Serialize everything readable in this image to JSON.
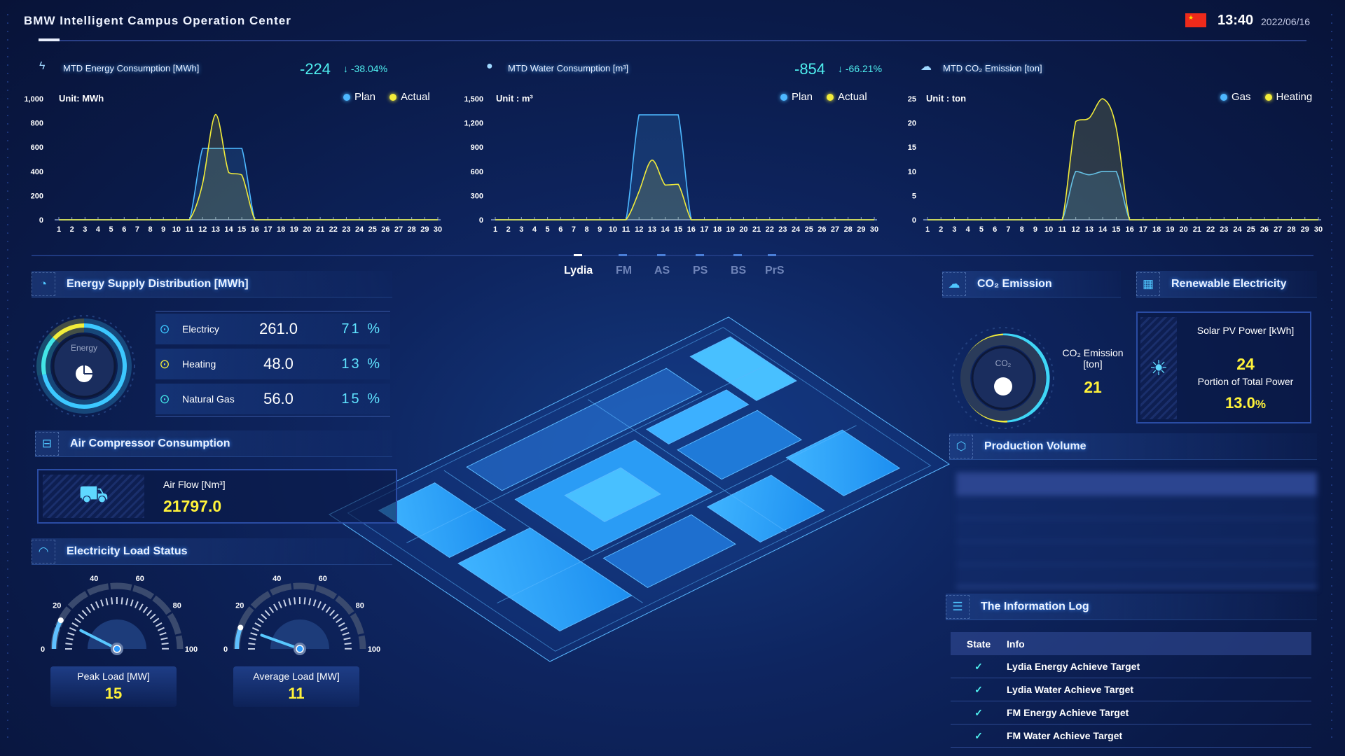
{
  "header": {
    "title": "BMW Intelligent Campus Operation Center",
    "time": "13:40",
    "date": "2022/06/16",
    "flag_icon": "china-flag-icon"
  },
  "kpis": [
    {
      "title": "MTD Energy Consumption [MWh]",
      "icon": "lightning-icon",
      "delta": "-224",
      "arrow": "↓",
      "pct": "-38.04%"
    },
    {
      "title": "MTD Water Consumption [m³]",
      "icon": "water-drop-icon",
      "delta": "-854",
      "arrow": "↓",
      "pct": "-66.21%"
    },
    {
      "title": "MTD CO₂ Emission [ton]",
      "icon": "co2-cloud-icon"
    }
  ],
  "chart_data": [
    {
      "type": "area",
      "unit": "Unit:  MWh",
      "ylim": [
        0,
        1000
      ],
      "yticks": [
        "0",
        "200",
        "400",
        "600",
        "800",
        "1,000"
      ],
      "x": [
        1,
        2,
        3,
        4,
        5,
        6,
        7,
        8,
        9,
        10,
        11,
        12,
        13,
        14,
        15,
        16,
        17,
        18,
        19,
        20,
        21,
        22,
        23,
        24,
        25,
        26,
        27,
        28,
        29,
        30
      ],
      "series": [
        {
          "name": "Plan",
          "color": "#4db8ff",
          "values": [
            0,
            0,
            0,
            0,
            0,
            0,
            0,
            0,
            0,
            0,
            0,
            590,
            590,
            590,
            590,
            0,
            0,
            0,
            0,
            0,
            0,
            0,
            0,
            0,
            0,
            0,
            0,
            0,
            0,
            0
          ]
        },
        {
          "name": "Actual",
          "color": "#f2ec3a",
          "values": [
            0,
            0,
            0,
            0,
            0,
            0,
            0,
            0,
            0,
            0,
            0,
            300,
            870,
            390,
            370,
            0,
            0,
            0,
            0,
            0,
            0,
            0,
            0,
            0,
            0,
            0,
            0,
            0,
            0,
            0
          ]
        }
      ]
    },
    {
      "type": "area",
      "unit": "Unit : m³",
      "ylim": [
        0,
        1500
      ],
      "yticks": [
        "0",
        "300",
        "600",
        "900",
        "1,200",
        "1,500"
      ],
      "x": [
        1,
        2,
        3,
        4,
        5,
        6,
        7,
        8,
        9,
        10,
        11,
        12,
        13,
        14,
        15,
        16,
        17,
        18,
        19,
        20,
        21,
        22,
        23,
        24,
        25,
        26,
        27,
        28,
        29,
        30
      ],
      "series": [
        {
          "name": "Plan",
          "color": "#4db8ff",
          "values": [
            0,
            0,
            0,
            0,
            0,
            0,
            0,
            0,
            0,
            0,
            0,
            1300,
            1300,
            1300,
            1300,
            0,
            0,
            0,
            0,
            0,
            0,
            0,
            0,
            0,
            0,
            0,
            0,
            0,
            0,
            0
          ]
        },
        {
          "name": "Actual",
          "color": "#f2ec3a",
          "values": [
            0,
            0,
            0,
            0,
            0,
            0,
            0,
            0,
            0,
            0,
            0,
            350,
            740,
            430,
            440,
            0,
            0,
            0,
            0,
            0,
            0,
            0,
            0,
            0,
            0,
            0,
            0,
            0,
            0,
            0
          ]
        }
      ]
    },
    {
      "type": "area",
      "unit": "Unit : ton",
      "ylim": [
        0,
        25
      ],
      "yticks": [
        "0",
        "5",
        "10",
        "15",
        "20",
        "25"
      ],
      "x": [
        1,
        2,
        3,
        4,
        5,
        6,
        7,
        8,
        9,
        10,
        11,
        12,
        13,
        14,
        15,
        16,
        17,
        18,
        19,
        20,
        21,
        22,
        23,
        24,
        25,
        26,
        27,
        28,
        29,
        30
      ],
      "series": [
        {
          "name": "Gas",
          "color": "#4db8ff",
          "values": [
            0,
            0,
            0,
            0,
            0,
            0,
            0,
            0,
            0,
            0,
            0,
            10,
            9.3,
            10,
            10,
            0,
            0,
            0,
            0,
            0,
            0,
            0,
            0,
            0,
            0,
            0,
            0,
            0,
            0,
            0
          ]
        },
        {
          "name": "Heating",
          "color": "#f2ec3a",
          "values": [
            0,
            0,
            0,
            0,
            0,
            0,
            0,
            0,
            0,
            0,
            0,
            20.3,
            21,
            25,
            19,
            0,
            0,
            0,
            0,
            0,
            0,
            0,
            0,
            0,
            0,
            0,
            0,
            0,
            0,
            0
          ]
        }
      ]
    }
  ],
  "tabs": [
    {
      "label": "Lydia",
      "active": true
    },
    {
      "label": "FM"
    },
    {
      "label": "AS"
    },
    {
      "label": "PS"
    },
    {
      "label": "BS"
    },
    {
      "label": "PrS"
    }
  ],
  "energy_supply": {
    "title": "Energy Supply Distribution [MWh]",
    "center_label": "Energy",
    "items": [
      {
        "name": "Electricy",
        "value": "261.0",
        "pct": "71 %",
        "share": 71,
        "color": "#3cc8ff"
      },
      {
        "name": "Heating",
        "value": "48.0",
        "pct": "13 %",
        "share": 13,
        "color": "#f2ec3a"
      },
      {
        "name": "Natural Gas",
        "value": "56.0",
        "pct": "15 %",
        "share": 15,
        "color": "#43e6e6"
      }
    ]
  },
  "air_compressor": {
    "title": "Air Compressor Consumption",
    "label": "Air Flow [Nm³]",
    "value": "21797.0"
  },
  "load_status": {
    "title": "Electricity Load Status",
    "scale": [
      "0",
      "20",
      "40",
      "60",
      "80",
      "100"
    ],
    "gauges": [
      {
        "label": "Peak Load [MW]",
        "value": 15
      },
      {
        "label": "Average Load [MW]",
        "value": 11
      }
    ]
  },
  "co2": {
    "title": "CO₂ Emission",
    "center_label": "CO₂",
    "label": "CO₂ Emission [ton]",
    "value": "21"
  },
  "renewable": {
    "title": "Renewable Electricity",
    "solar_label": "Solar PV Power [kWh]",
    "solar_value": "24",
    "portion_label": "Portion of Total Power",
    "portion_value": "13.0",
    "portion_unit": "%"
  },
  "production": {
    "title": "Production Volume"
  },
  "info_log": {
    "title": "The Information Log",
    "columns": [
      "State",
      "Info"
    ],
    "rows": [
      {
        "state": "✓",
        "info": "Lydia Energy Achieve Target"
      },
      {
        "state": "✓",
        "info": "Lydia Water Achieve Target"
      },
      {
        "state": "✓",
        "info": "FM Energy Achieve Target"
      },
      {
        "state": "✓",
        "info": "FM Water Achieve Target"
      }
    ]
  }
}
